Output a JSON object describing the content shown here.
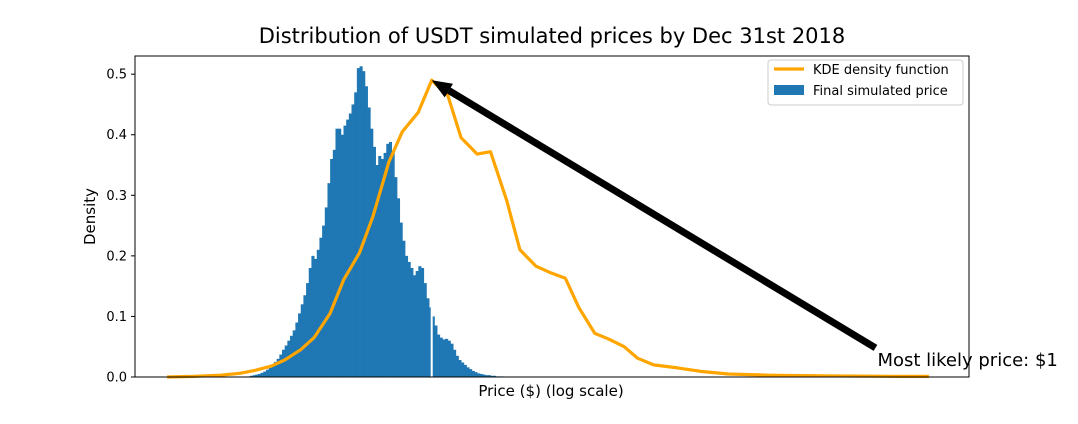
{
  "chart_data": {
    "type": "bar",
    "title": "Distribution of USDT simulated prices by Dec 31st 2018",
    "xlabel": "Price ($) (log scale)",
    "ylabel": "Density",
    "ylim": [
      0,
      0.53
    ],
    "yticks": [
      "0.0",
      "0.1",
      "0.2",
      "0.3",
      "0.4",
      "0.5"
    ],
    "xticks_shown": false,
    "legend_position": "top-right",
    "colors": {
      "histogram": "#1f77b4",
      "kde": "#ffa500",
      "marker_line": "#ffffff",
      "arrow": "#000000"
    },
    "series": [
      {
        "name": "Final simulated price",
        "kind": "histogram",
        "values": [
          0.001,
          0.002,
          0.003,
          0.004,
          0.005,
          0.007,
          0.009,
          0.012,
          0.015,
          0.02,
          0.025,
          0.03,
          0.037,
          0.045,
          0.052,
          0.06,
          0.068,
          0.077,
          0.09,
          0.105,
          0.12,
          0.135,
          0.155,
          0.18,
          0.2,
          0.195,
          0.21,
          0.23,
          0.25,
          0.28,
          0.32,
          0.36,
          0.375,
          0.41,
          0.41,
          0.4,
          0.415,
          0.425,
          0.435,
          0.45,
          0.47,
          0.51,
          0.513,
          0.505,
          0.48,
          0.445,
          0.41,
          0.38,
          0.35,
          0.365,
          0.36,
          0.37,
          0.385,
          0.388,
          0.37,
          0.33,
          0.295,
          0.255,
          0.225,
          0.2,
          0.19,
          0.18,
          0.168,
          0.175,
          0.183,
          0.18,
          0.155,
          0.13,
          0.115,
          0.1,
          0.085,
          0.07,
          0.065,
          0.062,
          0.063,
          0.06,
          0.055,
          0.045,
          0.035,
          0.028,
          0.024,
          0.02,
          0.016,
          0.013,
          0.01,
          0.008,
          0.006,
          0.005,
          0.004,
          0.003,
          0.003,
          0.002,
          0.002,
          0.001,
          0.001,
          0.001
        ],
        "first_bin_index": 30
      },
      {
        "name": "KDE density function",
        "kind": "line",
        "points": [
          [
            0,
            0
          ],
          [
            10,
            0.001
          ],
          [
            20,
            0.003
          ],
          [
            27,
            0.006
          ],
          [
            33,
            0.011
          ],
          [
            39,
            0.018
          ],
          [
            44,
            0.028
          ],
          [
            50,
            0.045
          ],
          [
            55,
            0.065
          ],
          [
            61,
            0.105
          ],
          [
            66,
            0.16
          ],
          [
            72,
            0.205
          ],
          [
            77,
            0.265
          ],
          [
            83,
            0.355
          ],
          [
            88,
            0.405
          ],
          [
            94,
            0.437
          ],
          [
            99,
            0.49
          ],
          [
            105,
            0.465
          ],
          [
            110,
            0.395
          ],
          [
            116,
            0.368
          ],
          [
            121,
            0.372
          ],
          [
            127,
            0.292
          ],
          [
            132,
            0.21
          ],
          [
            138,
            0.183
          ],
          [
            143,
            0.173
          ],
          [
            149,
            0.163
          ],
          [
            154,
            0.115
          ],
          [
            160,
            0.072
          ],
          [
            165,
            0.063
          ],
          [
            171,
            0.05
          ],
          [
            176,
            0.031
          ],
          [
            182,
            0.02
          ],
          [
            191,
            0.015
          ],
          [
            200,
            0.009
          ],
          [
            210,
            0.005
          ],
          [
            225,
            0.003
          ],
          [
            245,
            0.002
          ],
          [
            275,
            0.001
          ],
          [
            285,
            0.001
          ]
        ]
      }
    ],
    "annotation": {
      "text": "Most likely price: $1",
      "arrow_from": [
        265,
        0.048
      ],
      "arrow_to": [
        99,
        0.49
      ]
    },
    "x_domain": [
      -12,
      300
    ],
    "marker_line_x": 99
  }
}
